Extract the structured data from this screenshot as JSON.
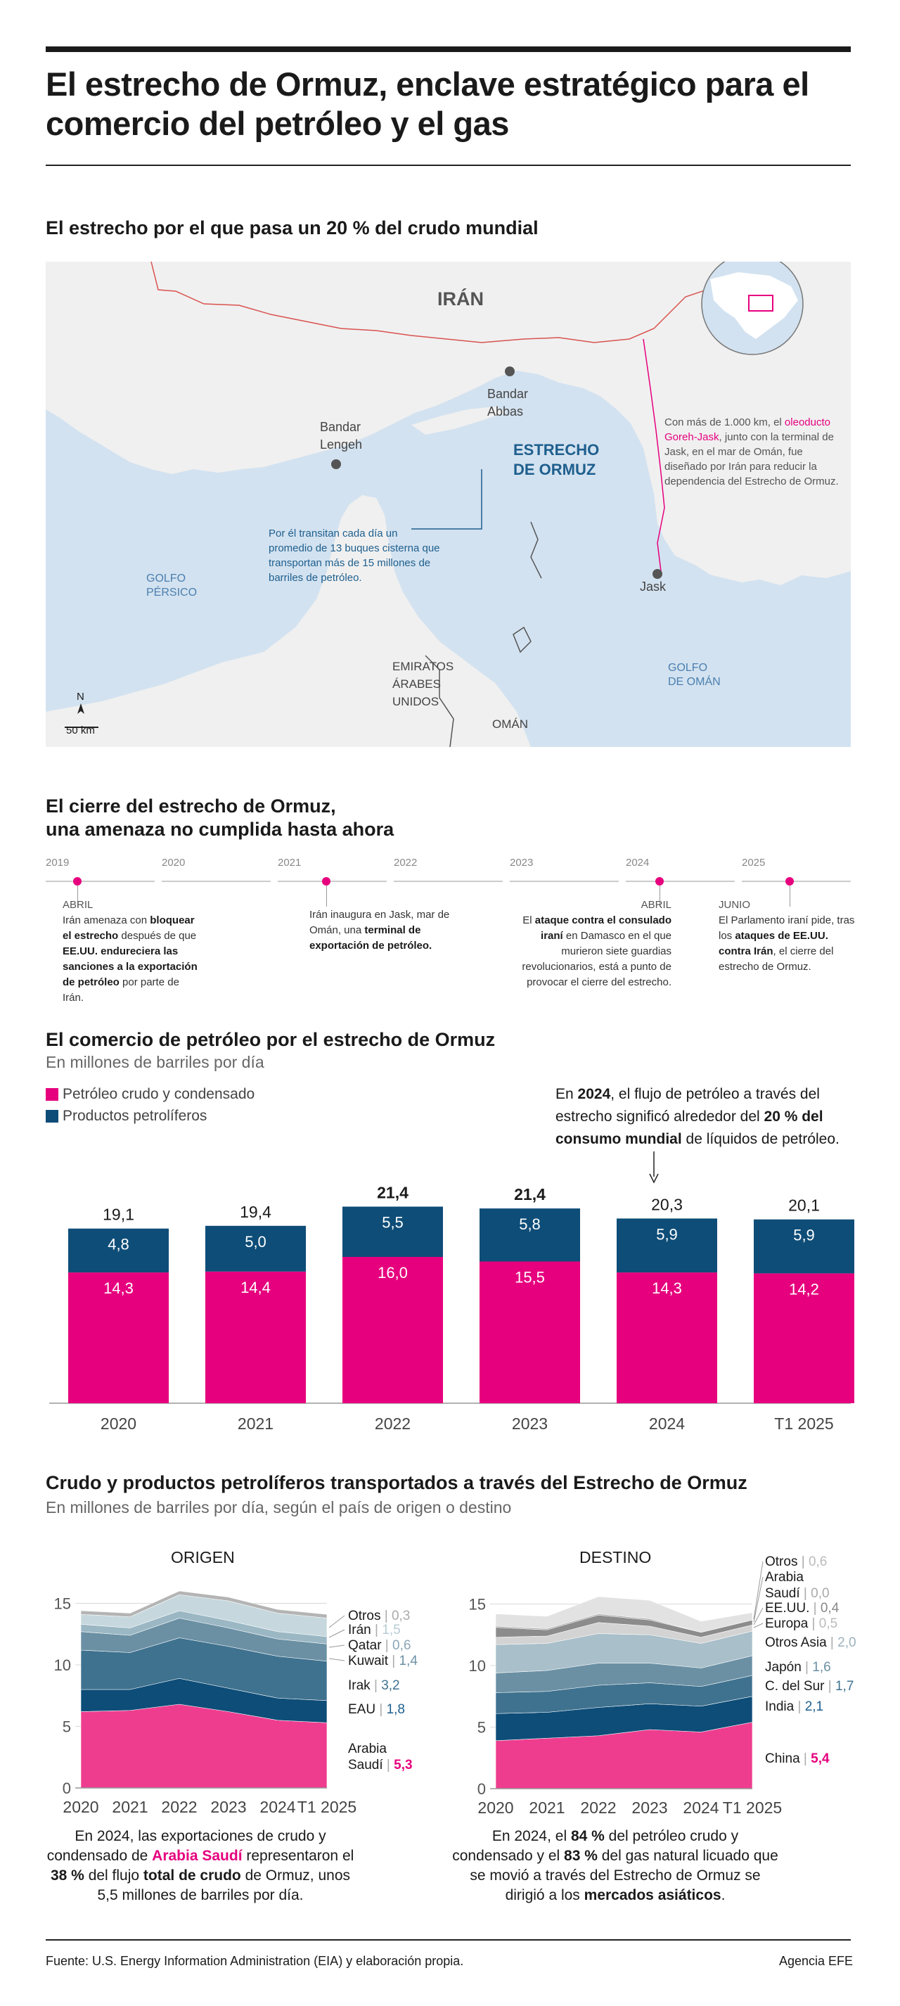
{
  "title": "El estrecho de Ormuz, enclave estratégico para el comercio del petróleo y el gas",
  "map": {
    "section_title": "El estrecho por el que pasa un 20 % del crudo mundial",
    "iran": "IRÁN",
    "bandar_abbas": "Bandar Abbas",
    "bandar_lengeh": "Bandar Lengeh",
    "strait": "ESTRECHO DE ORMUZ",
    "golfo_persico": "GOLFO PÉRSICO",
    "golfo_oman": "GOLFO DE OMÁN",
    "emiratos": "EMIRATOS ÁRABES UNIDOS",
    "oman": "OMÁN",
    "jask": "Jask",
    "north": "N",
    "scale": "50 km",
    "note_tankers": "Por él transitan cada día un promedio de 13 buques cisterna que transportan más de 15 millones de barriles de petróleo.",
    "note_pipeline_a": "Con más de 1.000 km, el ",
    "note_pipeline_link": "oleoducto Goreh-Jask",
    "note_pipeline_b": ", junto con la terminal de Jask, en el mar de Omán, fue diseñado por Irán para reducir la dependencia del Estrecho de Ormuz.",
    "colors": {
      "sea": "#d3e2f0",
      "land": "#f0f0f0",
      "pipeline": "#e6007e",
      "strait_label": "#1e5f8e"
    }
  },
  "timeline": {
    "section_title_1": "El cierre del estrecho de Ormuz,",
    "section_title_2": "una amenaza no cumplida hasta ahora",
    "years": [
      "2019",
      "2020",
      "2021",
      "2022",
      "2023",
      "2024",
      "2025"
    ],
    "events": [
      {
        "month": "ABRIL",
        "text_a": "Irán amenaza con ",
        "b1": "bloquear el estrecho",
        "text_b": " después de que ",
        "b2": "EE.UU. endureciera las sanciones a la exportación de petróleo",
        "text_c": " por parte de Irán."
      },
      {
        "month": "",
        "text_a": "Irán inaugura en Jask, mar de Omán, una ",
        "b1": "terminal de exportación de petróleo.",
        "text_b": "",
        "b2": "",
        "text_c": ""
      },
      {
        "month": "ABRIL",
        "text_a": "El ",
        "b1": "ataque contra el consulado iraní",
        "text_b": " en Damasco en el que murieron siete guardias revolucionarios, está a punto de provocar el cierre del estrecho.",
        "b2": "",
        "text_c": ""
      },
      {
        "month": "JUNIO",
        "text_a": "El Parlamento iraní pide, tras los ",
        "b1": "ataques de EE.UU. contra Irán",
        "text_b": ", el cierre del estrecho de Ormuz.",
        "b2": "",
        "text_c": ""
      }
    ]
  },
  "trade": {
    "section_title": "El comercio de petróleo por el estrecho de Ormuz",
    "subtitle": "En millones de barriles por día",
    "legend_crude": "Petróleo crudo y condensado",
    "legend_products": "Productos petrolíferos",
    "note_a": "En ",
    "note_b1": "2024",
    "note_c": ", el flujo de petróleo a través del estrecho significó alrededor del ",
    "note_b2": "20 % del consumo mundial",
    "note_d": " de líquidos de petróleo.",
    "colors": {
      "crude": "#e6007e",
      "products": "#0e4d78"
    }
  },
  "area": {
    "section_title": "Crudo y productos petrolíferos transportados a través del Estrecho de Ormuz",
    "subtitle": "En millones de barriles por día, según el país de origen o destino",
    "origin_title": "ORIGEN",
    "dest_title": "DESTINO",
    "origin_note_a": "En 2024, las exportaciones de crudo y condensado de ",
    "origin_note_b1": "Arabia Saudí",
    "origin_note_c": " representaron el ",
    "origin_note_b2": "38 %",
    "origin_note_d": " del flujo ",
    "origin_note_b3": "total de crudo",
    "origin_note_e": " de Ormuz, unos 5,5 millones de barriles por día.",
    "dest_note_a": "En 2024, el ",
    "dest_note_b1": "84 %",
    "dest_note_c": " del petróleo crudo y condensado y el ",
    "dest_note_b2": "83 %",
    "dest_note_d": " del gas natural licuado que se movió a través del Estrecho de Ormuz se dirigió a los ",
    "dest_note_b3": "mercados asiáticos",
    "dest_note_e": "."
  },
  "chart_data": [
    {
      "type": "bar",
      "stacked": true,
      "title": "El comercio de petróleo por el estrecho de Ormuz",
      "ylabel": "En millones de barriles por día",
      "categories": [
        "2020",
        "2021",
        "2022",
        "2023",
        "2024",
        "T1 2025"
      ],
      "series": [
        {
          "name": "Petróleo crudo y condensado",
          "color": "#e6007e",
          "values": [
            14.3,
            14.4,
            16.0,
            15.5,
            14.3,
            14.2
          ],
          "labels": [
            "14,3",
            "14,4",
            "16,0",
            "15,5",
            "14,3",
            "14,2"
          ]
        },
        {
          "name": "Productos petrolíferos",
          "color": "#0e4d78",
          "values": [
            4.8,
            5.0,
            5.5,
            5.8,
            5.9,
            5.9
          ],
          "labels": [
            "4,8",
            "5,0",
            "5,5",
            "5,8",
            "5,9",
            "5,9"
          ]
        }
      ],
      "totals": [
        "19,1",
        "19,4",
        "21,4",
        "21,4",
        "20,3",
        "20,1"
      ],
      "bold_totals": [
        false,
        false,
        true,
        true,
        false,
        false
      ],
      "ylim": [
        0,
        22
      ]
    },
    {
      "type": "area",
      "stacked": true,
      "title": "ORIGEN",
      "x": [
        "2020",
        "2021",
        "2022",
        "2023",
        "2024",
        "T1 2025"
      ],
      "y_ticks": [
        "0",
        "5",
        "10",
        "15"
      ],
      "ylim": [
        0,
        16
      ],
      "series": [
        {
          "name": "Arabia Saudí",
          "value_label": "5,3",
          "color": "#ee3d8f",
          "label_color": "#e6007e",
          "values": [
            6.2,
            6.3,
            6.8,
            6.2,
            5.5,
            5.3
          ]
        },
        {
          "name": "EAU",
          "value_label": "1,8",
          "color": "#0e4d78",
          "label_color": "#1e5f8e",
          "values": [
            1.8,
            1.7,
            2.1,
            1.9,
            1.8,
            1.8
          ]
        },
        {
          "name": "Irak",
          "value_label": "3,2",
          "color": "#3f728f",
          "label_color": "#3f728f",
          "values": [
            3.2,
            3.0,
            3.3,
            3.4,
            3.4,
            3.2
          ]
        },
        {
          "name": "Kuwait",
          "value_label": "1,4",
          "color": "#6b90a4",
          "label_color": "#6b90a4",
          "values": [
            1.5,
            1.4,
            1.6,
            1.5,
            1.4,
            1.4
          ]
        },
        {
          "name": "Qatar",
          "value_label": "0,6",
          "color": "#9bb7c4",
          "label_color": "#8aa7b6",
          "values": [
            0.6,
            0.6,
            0.6,
            0.6,
            0.6,
            0.6
          ]
        },
        {
          "name": "Irán",
          "value_label": "1,5",
          "color": "#c6d8de",
          "label_color": "#b7ccd4",
          "values": [
            0.8,
            0.9,
            1.3,
            1.6,
            1.5,
            1.5
          ]
        },
        {
          "name": "Otros",
          "value_label": "0,3",
          "color": "#b4b4b4",
          "label_color": "#aaaaaa",
          "values": [
            0.3,
            0.3,
            0.3,
            0.3,
            0.3,
            0.3
          ]
        }
      ]
    },
    {
      "type": "area",
      "stacked": true,
      "title": "DESTINO",
      "x": [
        "2020",
        "2021",
        "2022",
        "2023",
        "2024",
        "T1 2025"
      ],
      "y_ticks": [
        "0",
        "5",
        "10",
        "15"
      ],
      "ylim": [
        0,
        16
      ],
      "series": [
        {
          "name": "China",
          "value_label": "5,4",
          "color": "#ee3d8f",
          "label_color": "#e6007e",
          "values": [
            3.9,
            4.1,
            4.3,
            4.8,
            4.6,
            5.4
          ]
        },
        {
          "name": "India",
          "value_label": "2,1",
          "color": "#0e4d78",
          "label_color": "#1e5f8e",
          "values": [
            2.2,
            2.1,
            2.3,
            2.1,
            2.1,
            2.1
          ]
        },
        {
          "name": "C. del Sur",
          "value_label": "1,7",
          "color": "#3f728f",
          "label_color": "#3f728f",
          "values": [
            1.7,
            1.7,
            1.8,
            1.7,
            1.6,
            1.7
          ]
        },
        {
          "name": "Japón",
          "value_label": "1,6",
          "color": "#6b90a4",
          "label_color": "#6b90a4",
          "values": [
            1.6,
            1.7,
            1.8,
            1.6,
            1.5,
            1.6
          ]
        },
        {
          "name": "Otros Asia",
          "value_label": "2,0",
          "color": "#a9bfca",
          "label_color": "#9bb1bd",
          "values": [
            2.3,
            2.2,
            2.4,
            2.3,
            2.0,
            2.0
          ]
        },
        {
          "name": "Europa",
          "value_label": "0,5",
          "color": "#d3d3d3",
          "label_color": "#bbbbbb",
          "values": [
            0.6,
            0.6,
            0.9,
            0.7,
            0.5,
            0.5
          ]
        },
        {
          "name": "EE.UU.",
          "value_label": "0,4",
          "color": "#8c8c8c",
          "label_color": "#888888",
          "values": [
            0.8,
            0.5,
            0.6,
            0.5,
            0.4,
            0.4
          ]
        },
        {
          "name": "Arabia Saudí",
          "value_label": "0,0",
          "color": "#a8a8a8",
          "label_color": "#aaaaaa",
          "values": [
            0.1,
            0.1,
            0.1,
            0.1,
            0.0,
            0.0
          ]
        },
        {
          "name": "Otros",
          "value_label": "0,6",
          "color": "#e2e2e2",
          "label_color": "#bbbbbb",
          "values": [
            1.0,
            1.0,
            1.4,
            1.5,
            0.9,
            0.6
          ]
        }
      ]
    }
  ],
  "footer": {
    "source": "Fuente: U.S. Energy Information Administration (EIA) y elaboración propia.",
    "agency": "Agencia EFE"
  }
}
